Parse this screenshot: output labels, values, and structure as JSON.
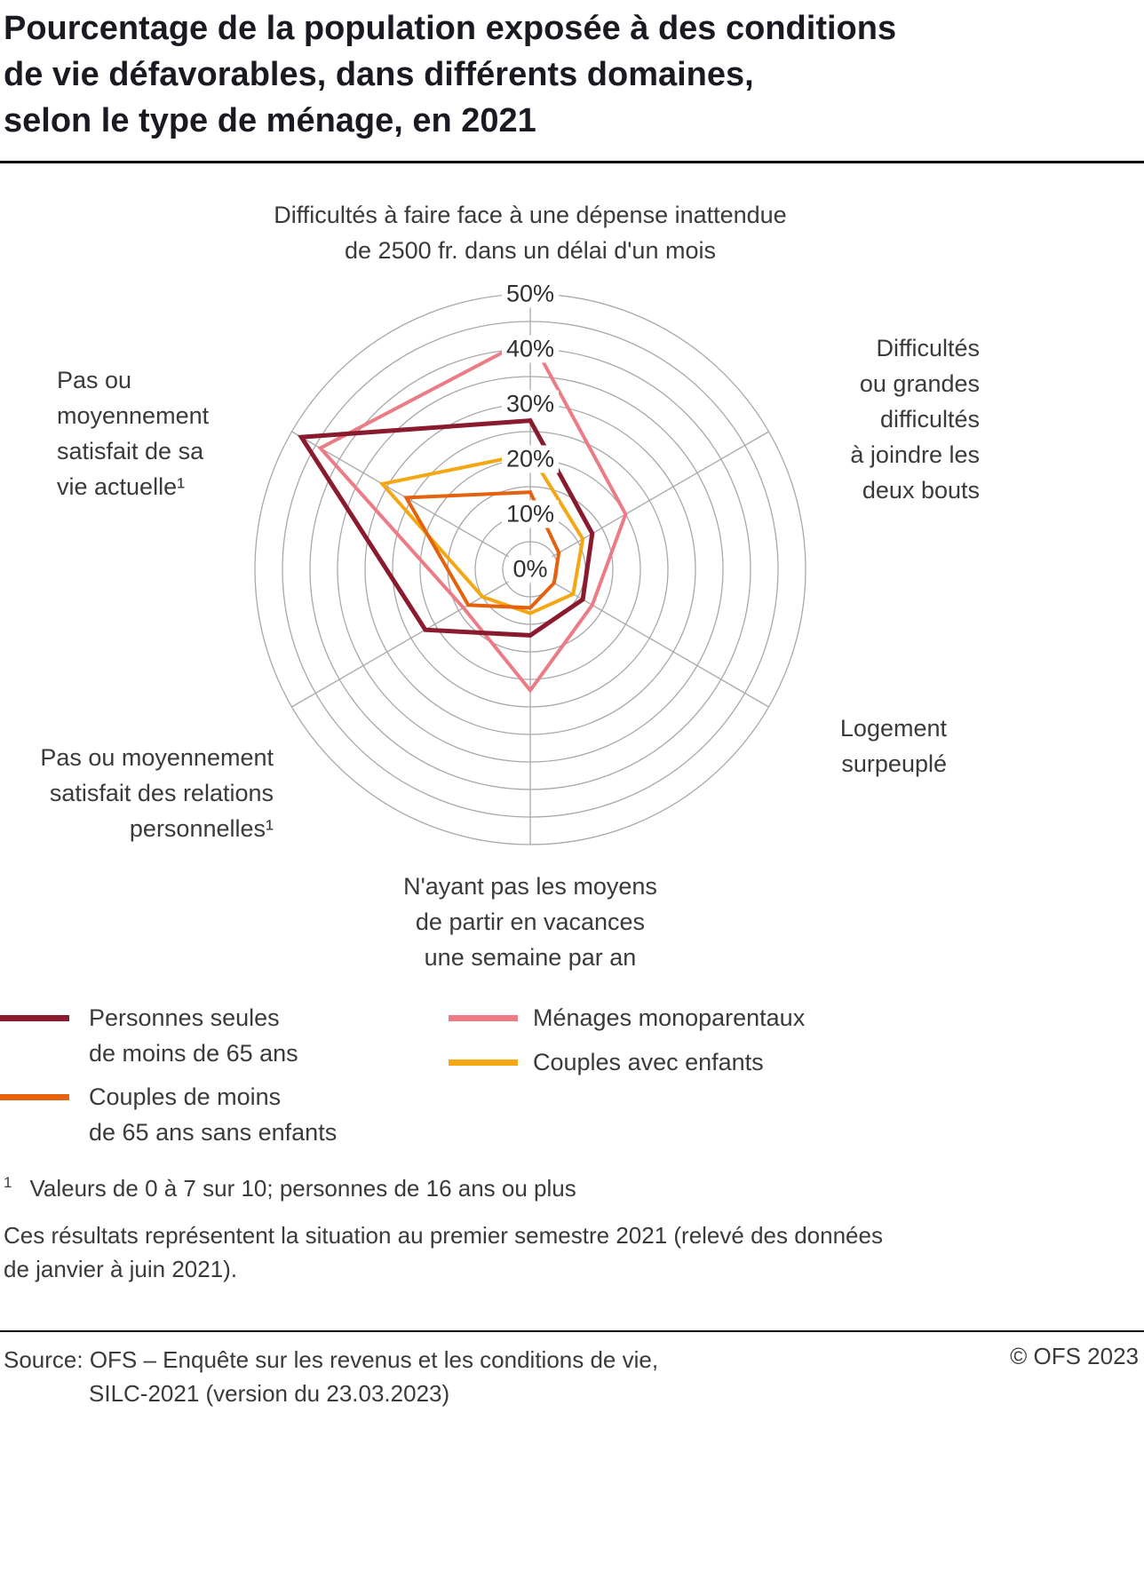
{
  "header": {
    "title": "Pourcentage de la population exposée à des conditions\nde vie défavorables, dans différents domaines,\nselon le type de ménage, en 2021"
  },
  "chart_data": {
    "type": "radar",
    "rmax": 50,
    "ring_step": 5,
    "grid_color": "#a8a8a8",
    "tick_values": [
      50,
      40,
      30,
      20,
      10,
      0
    ],
    "tick_labels": [
      "50%",
      "40%",
      "30%",
      "20%",
      "10%",
      "0%"
    ],
    "axes": [
      {
        "id": "depense-inattendue",
        "label": "Difficultés à faire face à une dépense inattendue\nde 2500 fr. dans un délai d'un mois"
      },
      {
        "id": "joindre-les-deux-bouts",
        "label": "Difficultés\nou grandes\ndifficultés\nà joindre les\ndeux bouts"
      },
      {
        "id": "logement-surpeuple",
        "label": "Logement\nsurpeuplé"
      },
      {
        "id": "vacances",
        "label": "N'ayant pas les moyens\nde partir en vacances\nune semaine par an"
      },
      {
        "id": "relations-personnelles",
        "label": "Pas ou moyennement\nsatisfait des relations\npersonnelles¹"
      },
      {
        "id": "vie-actuelle",
        "label": "Pas ou\nmoyennement\nsatisfait de sa\nvie actuelle¹"
      }
    ],
    "series": [
      {
        "name": "Personnes seules de moins de 65 ans",
        "color": "#8a1a2e",
        "line_width": 5,
        "values": [
          27,
          13,
          11,
          12,
          22,
          48
        ]
      },
      {
        "name": "Ménages monoparentaux",
        "color": "#ec7b85",
        "line_width": 4,
        "values": [
          42,
          20,
          13,
          22,
          14,
          44
        ]
      },
      {
        "name": "Couples de moins de 65 ans sans enfants",
        "color": "#e4610e",
        "line_width": 4,
        "values": [
          14,
          6,
          5,
          7,
          13,
          26
        ]
      },
      {
        "name": "Couples avec enfants",
        "color": "#f3a712",
        "line_width": 4,
        "values": [
          21,
          11,
          9,
          8,
          10,
          31
        ]
      }
    ],
    "draw_order": [
      1,
      3,
      2,
      0
    ],
    "title": "Pourcentage de la population exposée à des conditions de vie défavorables, dans différents domaines, selon le type de ménage, en 2021"
  },
  "legend": {
    "items": [
      {
        "label": "Personnes seules\nde moins de 65 ans",
        "series": 0
      },
      {
        "label": "Couples de moins\nde 65 ans sans enfants",
        "series": 2
      },
      {
        "label": "Ménages monoparentaux",
        "series": 1
      },
      {
        "label": "Couples avec enfants",
        "series": 3
      }
    ]
  },
  "notes": {
    "footnote_marker": "1",
    "footnote_text": "Valeurs de 0 à 7 sur 10; personnes de 16 ans ou plus",
    "remark": "Ces résultats représentent la situation au premier semestre 2021 (relevé des données\nde janvier à juin 2021)."
  },
  "footer": {
    "source_line1": "Source: OFS – Enquête sur les revenus et les conditions de vie,",
    "source_line2": "SILC-2021 (version du 23.03.2023)",
    "copyright": "© OFS 2023"
  }
}
